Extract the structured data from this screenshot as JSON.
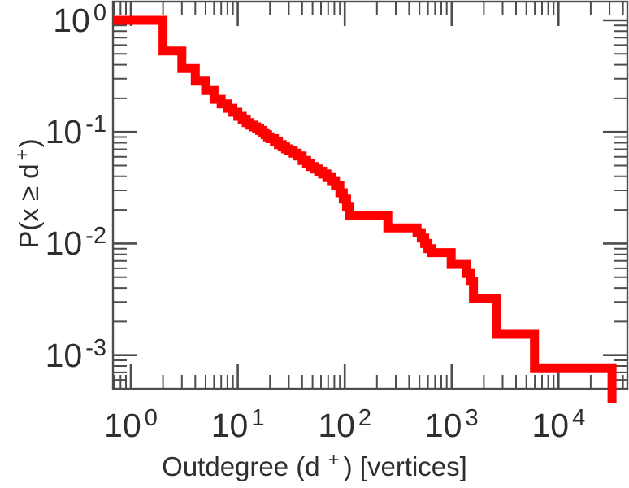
{
  "figure": {
    "background": "#ffffff"
  },
  "chart_data": {
    "type": "line",
    "subtype": "step-staircase-ccdf",
    "title": "",
    "xlabel": {
      "prefix": "Outdegree (d",
      "sup": "+",
      "suffix": ") [vertices]"
    },
    "ylabel": {
      "prefix": "P(x ≥ d",
      "sup": "+",
      "suffix": ")"
    },
    "xlabel_text": "Outdegree (d+) [vertices]",
    "ylabel_text": "P(x ≥ d+)",
    "x_scale": "log",
    "y_scale": "log",
    "xlim": [
      0.68,
      44000
    ],
    "ylim": [
      0.0005,
      1.47
    ],
    "grid": false,
    "legend": "none",
    "x_ticks": [
      {
        "value": 1,
        "base": "10",
        "exp": "0"
      },
      {
        "value": 10,
        "base": "10",
        "exp": "1"
      },
      {
        "value": 100,
        "base": "10",
        "exp": "2"
      },
      {
        "value": 1000,
        "base": "10",
        "exp": "3"
      },
      {
        "value": 10000,
        "base": "10",
        "exp": "4"
      }
    ],
    "y_ticks": [
      {
        "value": 1,
        "base": "10",
        "exp": "0"
      },
      {
        "value": 0.1,
        "base": "10",
        "exp": "-1"
      },
      {
        "value": 0.01,
        "base": "10",
        "exp": "-2"
      },
      {
        "value": 0.001,
        "base": "10",
        "exp": "-3"
      }
    ],
    "line_color": "#ff0000",
    "line_width": 11,
    "axis_color": "#4d4d4d",
    "text_color": "#2e2e2e",
    "points": [
      [
        1,
        1.0
      ],
      [
        2,
        0.53
      ],
      [
        3,
        0.37
      ],
      [
        4,
        0.285
      ],
      [
        5,
        0.235
      ],
      [
        6,
        0.196
      ],
      [
        7,
        0.178
      ],
      [
        8,
        0.163
      ],
      [
        9,
        0.15
      ],
      [
        10,
        0.138
      ],
      [
        11,
        0.128
      ],
      [
        12,
        0.121
      ],
      [
        13,
        0.115
      ],
      [
        14,
        0.111
      ],
      [
        15,
        0.107
      ],
      [
        16,
        0.103
      ],
      [
        17,
        0.0985
      ],
      [
        18,
        0.0945
      ],
      [
        19,
        0.0905
      ],
      [
        20,
        0.087
      ],
      [
        22,
        0.0815
      ],
      [
        24,
        0.077
      ],
      [
        26,
        0.0735
      ],
      [
        28,
        0.0705
      ],
      [
        30,
        0.068
      ],
      [
        33,
        0.0645
      ],
      [
        36,
        0.061
      ],
      [
        40,
        0.0555
      ],
      [
        44,
        0.0525
      ],
      [
        48,
        0.049
      ],
      [
        52,
        0.0465
      ],
      [
        57,
        0.0445
      ],
      [
        62,
        0.042
      ],
      [
        68,
        0.039
      ],
      [
        75,
        0.036
      ],
      [
        82,
        0.033
      ],
      [
        90,
        0.0285
      ],
      [
        97,
        0.025
      ],
      [
        104,
        0.0215
      ],
      [
        111,
        0.0177
      ],
      [
        253,
        0.0138
      ],
      [
        475,
        0.0125
      ],
      [
        520,
        0.0112
      ],
      [
        560,
        0.01
      ],
      [
        600,
        0.009
      ],
      [
        650,
        0.0083
      ],
      [
        990,
        0.0065
      ],
      [
        1380,
        0.0054
      ],
      [
        1490,
        0.0046
      ],
      [
        1600,
        0.0032
      ],
      [
        2650,
        0.00154
      ],
      [
        5950,
        0.00077
      ],
      [
        31600,
        0.00037
      ]
    ]
  }
}
